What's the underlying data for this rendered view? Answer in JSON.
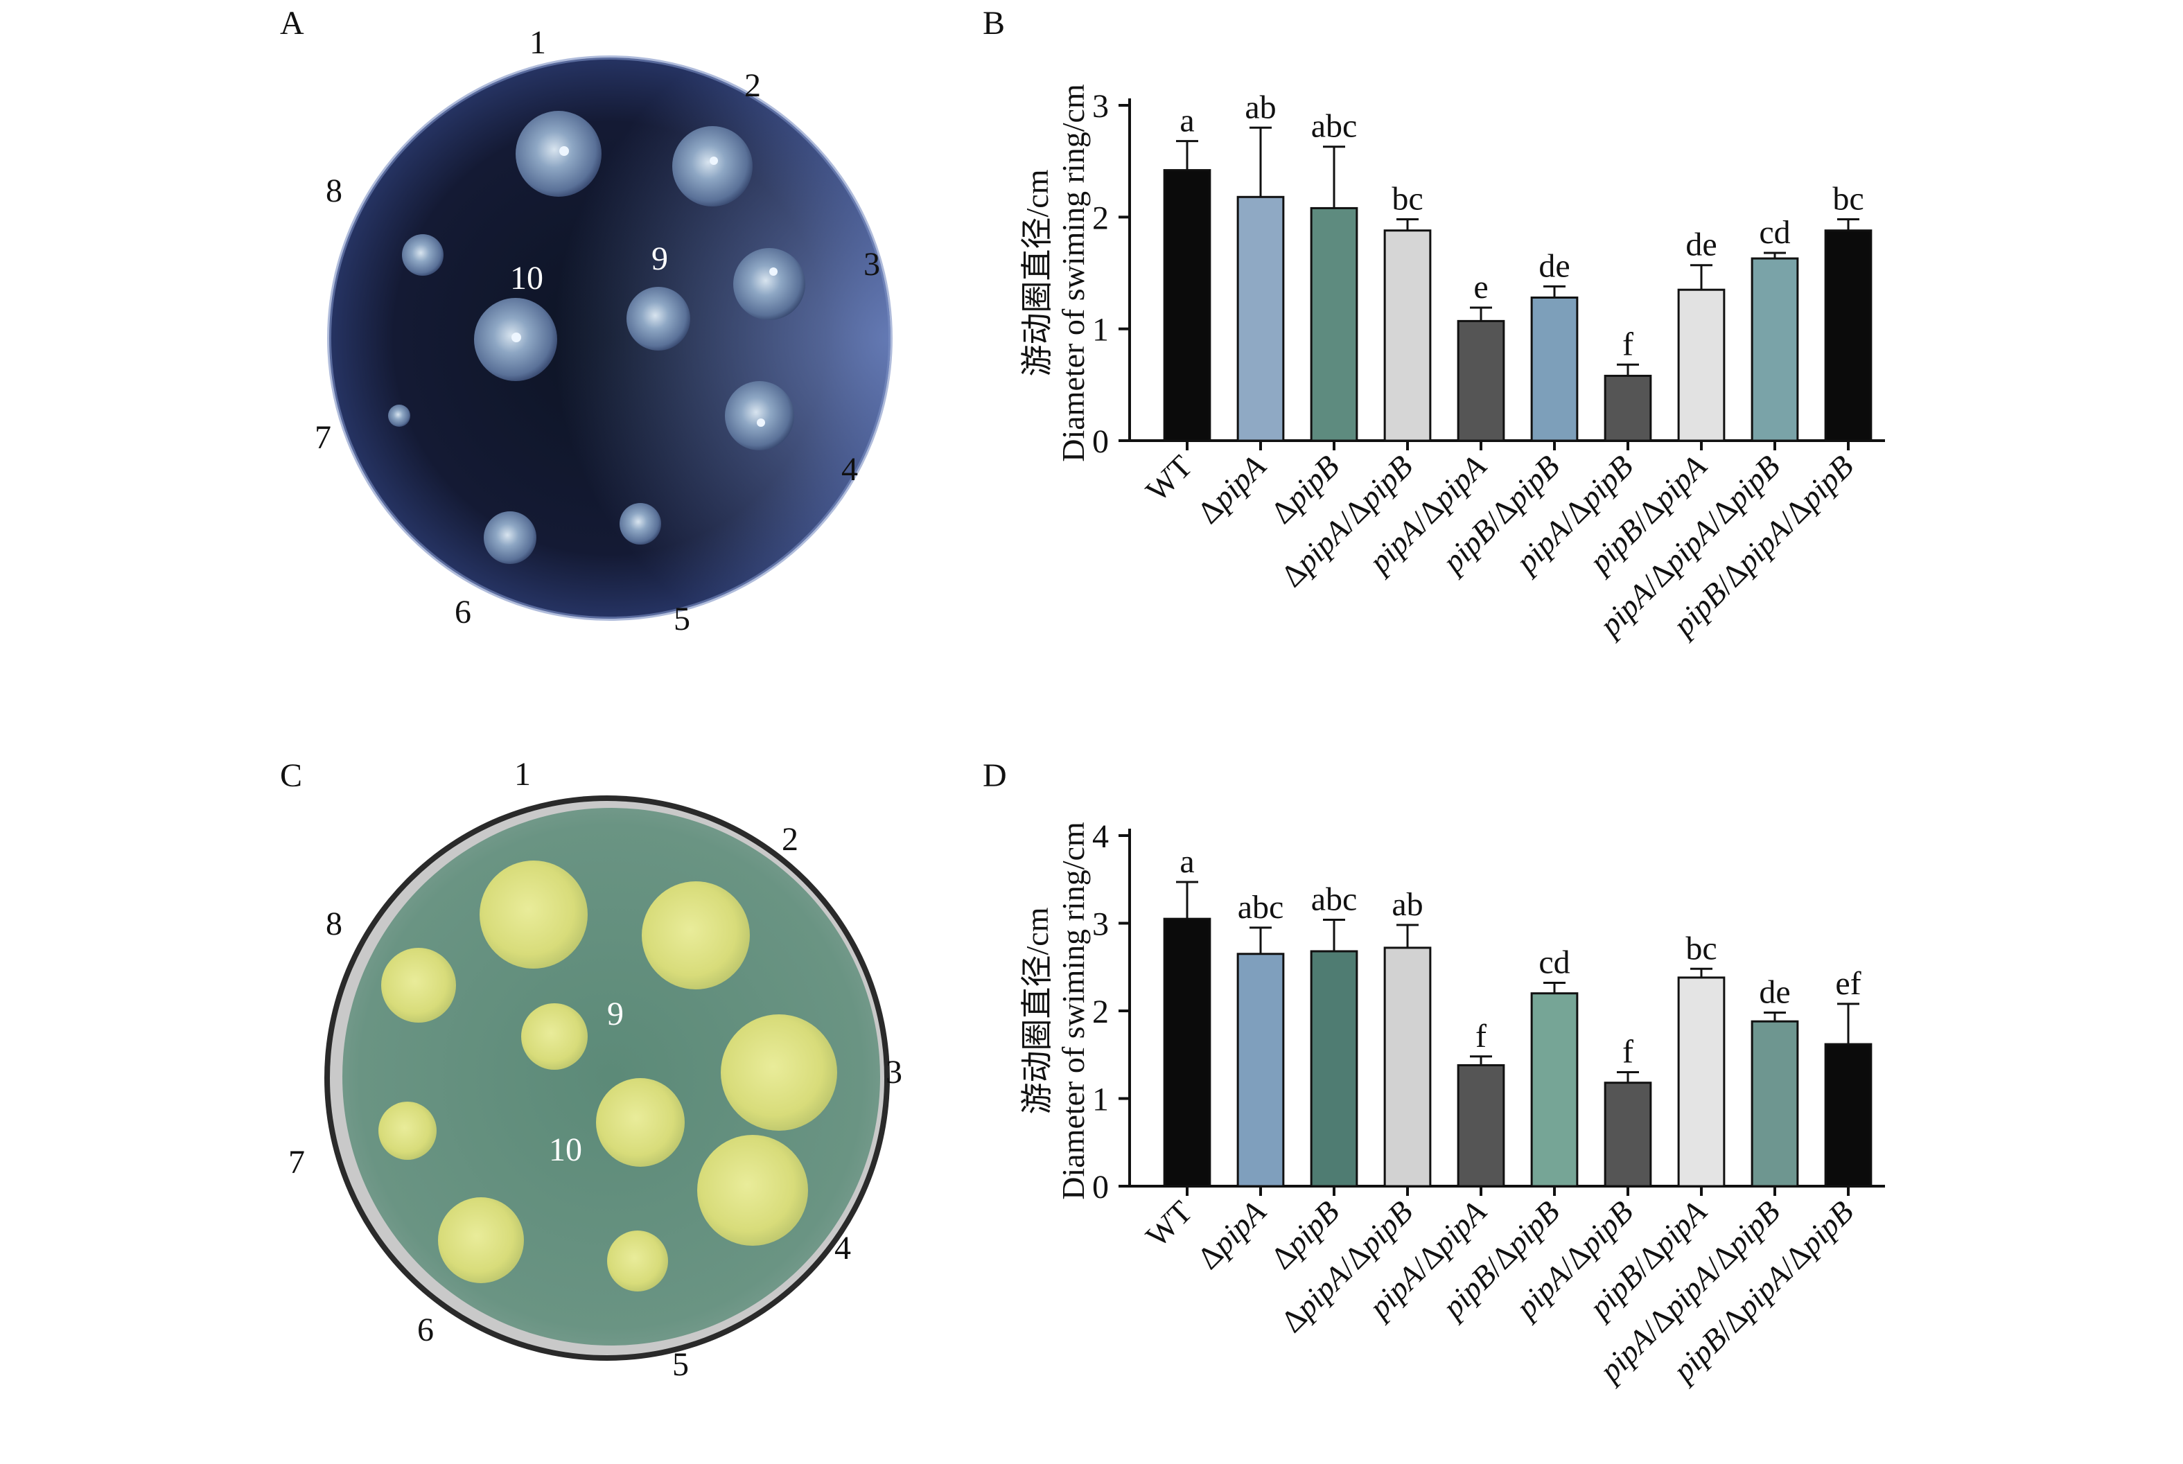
{
  "panels": {
    "a": "A",
    "b": "B",
    "c": "C",
    "d": "D"
  },
  "plate_a": {
    "labels": [
      "1",
      "2",
      "3",
      "4",
      "5",
      "6",
      "7",
      "8",
      "9",
      "10"
    ]
  },
  "plate_c": {
    "labels": [
      "1",
      "2",
      "3",
      "4",
      "5",
      "6",
      "7",
      "8",
      "9",
      "10"
    ]
  },
  "colors": {
    "black": "#0b0b0b",
    "steel_blue": "#7f9fbd",
    "teal_green": "#4f7c72",
    "light_gray": "#dcdcdc",
    "dark_gray": "#555555",
    "sage_blue": "#7ea3a0",
    "sea_green": "#6e9e8f"
  },
  "chart_data": [
    {
      "type": "bar",
      "panel": "B",
      "ylabel_cn": "游动圈直径/cm",
      "ylabel_en": "Diameter of swiming ring/cm",
      "ylim": [
        0,
        3
      ],
      "yticks": [
        "0",
        "1",
        "2",
        "3"
      ],
      "categories": [
        "WT",
        "ΔpipA",
        "ΔpipB",
        "ΔpipA/ΔpipB",
        "pipA/ΔpipA",
        "pipB/ΔpipB",
        "pipA/ΔpipB",
        "pipB/ΔpipA",
        "pipA/ΔpipA/ΔpipB",
        "pipB/ΔpipA/ΔpipB"
      ],
      "values": [
        2.42,
        2.18,
        2.08,
        1.88,
        1.07,
        1.28,
        0.58,
        1.35,
        1.63,
        1.88
      ],
      "errors": [
        0.26,
        0.62,
        0.55,
        0.1,
        0.12,
        0.1,
        0.1,
        0.22,
        0.05,
        0.1
      ],
      "letters": [
        "a",
        "ab",
        "abc",
        "bc",
        "e",
        "de",
        "f",
        "de",
        "cd",
        "bc"
      ],
      "bar_colors": [
        "#0b0b0b",
        "#8fa9c4",
        "#5e8b7f",
        "#d6d6d6",
        "#555555",
        "#7d9fba",
        "#555555",
        "#e2e2e2",
        "#7aa3a8",
        "#0b0b0b"
      ]
    },
    {
      "type": "bar",
      "panel": "D",
      "ylabel_cn": "游动圈直径/cm",
      "ylabel_en": "Diameter of swiming ring/cm",
      "ylim": [
        0,
        4
      ],
      "yticks": [
        "0",
        "1",
        "2",
        "3",
        "4"
      ],
      "categories": [
        "WT",
        "ΔpipA",
        "ΔpipB",
        "ΔpipA/ΔpipB",
        "pipA/ΔpipA",
        "pipB/ΔpipB",
        "pipA/ΔpipB",
        "pipB/ΔpipA",
        "pipA/ΔpipA/ΔpipB",
        "pipB/ΔpipA/ΔpipB"
      ],
      "values": [
        3.05,
        2.65,
        2.68,
        2.72,
        1.38,
        2.2,
        1.18,
        2.38,
        1.88,
        1.62
      ],
      "errors": [
        0.42,
        0.3,
        0.36,
        0.26,
        0.1,
        0.12,
        0.12,
        0.1,
        0.1,
        0.46
      ],
      "letters": [
        "a",
        "abc",
        "abc",
        "ab",
        "f",
        "cd",
        "f",
        "bc",
        "de",
        "ef"
      ],
      "bar_colors": [
        "#0b0b0b",
        "#7f9fbd",
        "#4f7c72",
        "#d2d2d2",
        "#555555",
        "#76a596",
        "#555555",
        "#e4e4e4",
        "#6e9690",
        "#0b0b0b"
      ]
    }
  ]
}
